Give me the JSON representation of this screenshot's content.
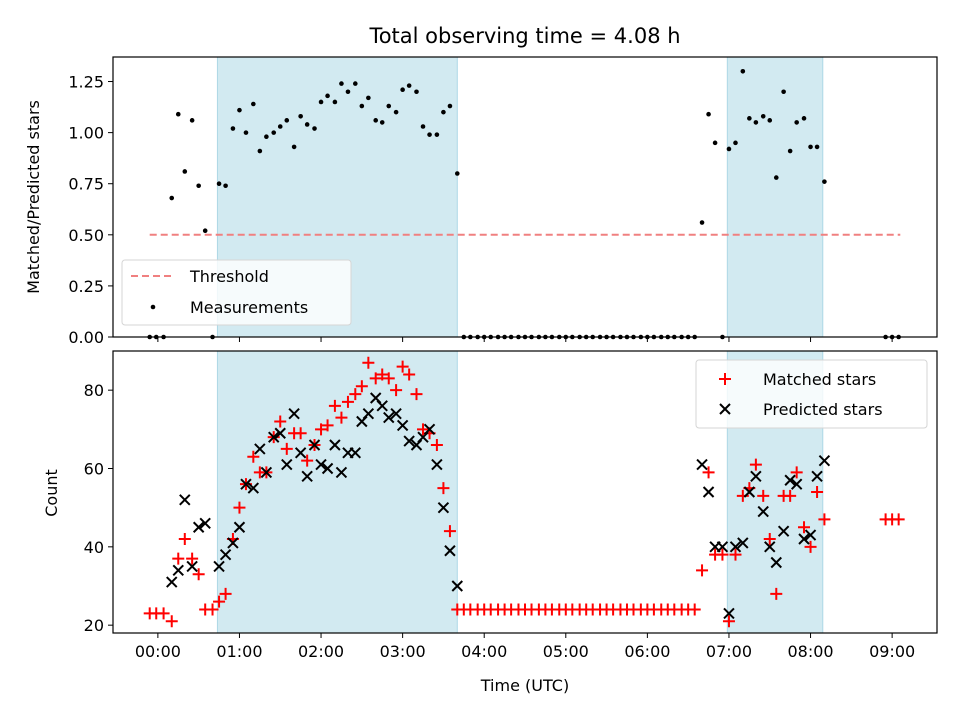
{
  "figure": {
    "title": "Total observing time = 4.08 h",
    "xlabel": "Time (UTC)"
  },
  "chart_data": [
    {
      "type": "scatter",
      "title": "Total observing time = 4.08 h",
      "xlabel": "Time (UTC)",
      "ylabel": "Matched/Predicted stars",
      "xlim": [
        -0.55,
        9.55
      ],
      "ylim": [
        0,
        1.37
      ],
      "xticks": [
        0,
        1,
        2,
        3,
        4,
        5,
        6,
        7,
        8,
        9
      ],
      "xtick_labels": [
        "00:00",
        "01:00",
        "02:00",
        "03:00",
        "04:00",
        "05:00",
        "06:00",
        "07:00",
        "08:00",
        "09:00"
      ],
      "yticks": [
        0,
        0.25,
        0.5,
        0.75,
        1.0,
        1.25
      ],
      "ytick_labels": [
        "0.00",
        "0.25",
        "0.50",
        "0.75",
        "1.00",
        "1.25"
      ],
      "shaded_intervals": [
        [
          0.73,
          3.67
        ],
        [
          6.98,
          8.15
        ]
      ],
      "shade_color": "#add8e6",
      "threshold": {
        "name": "Threshold",
        "y": 0.5,
        "x_start": -0.1,
        "x_end": 9.1,
        "color": "#f08080"
      },
      "legend": {
        "position": "lower-left",
        "entries": [
          "Threshold",
          "Measurements"
        ]
      },
      "series": [
        {
          "name": "Measurements",
          "marker": "dot",
          "color": "#000000",
          "x": [
            -0.1,
            -0.02,
            0.07,
            0.17,
            0.25,
            0.33,
            0.42,
            0.5,
            0.58,
            0.67,
            0.75,
            0.83,
            0.92,
            1.0,
            1.08,
            1.17,
            1.25,
            1.33,
            1.42,
            1.5,
            1.58,
            1.67,
            1.75,
            1.83,
            1.92,
            2.0,
            2.08,
            2.17,
            2.25,
            2.33,
            2.42,
            2.5,
            2.58,
            2.67,
            2.75,
            2.83,
            2.92,
            3.0,
            3.08,
            3.17,
            3.25,
            3.33,
            3.42,
            3.5,
            3.58,
            3.67,
            3.75,
            3.83,
            3.92,
            4.0,
            4.08,
            4.17,
            4.25,
            4.33,
            4.42,
            4.5,
            4.58,
            4.67,
            4.75,
            4.83,
            4.92,
            5.0,
            5.08,
            5.17,
            5.25,
            5.33,
            5.42,
            5.5,
            5.58,
            5.67,
            5.75,
            5.83,
            5.92,
            6.0,
            6.08,
            6.17,
            6.25,
            6.33,
            6.42,
            6.5,
            6.58,
            6.67,
            6.75,
            6.83,
            6.92,
            7.0,
            7.08,
            7.17,
            7.25,
            7.33,
            7.42,
            7.5,
            7.58,
            7.67,
            7.75,
            7.83,
            7.92,
            8.0,
            8.08,
            8.17,
            8.92,
            9.0,
            9.08
          ],
          "y": [
            0,
            0,
            0,
            0.68,
            1.09,
            0.81,
            1.06,
            0.74,
            0.52,
            0,
            0.75,
            0.74,
            1.02,
            1.11,
            1.0,
            1.14,
            0.91,
            0.98,
            1.0,
            1.03,
            1.06,
            0.93,
            1.08,
            1.04,
            1.02,
            1.15,
            1.18,
            1.15,
            1.24,
            1.2,
            1.24,
            1.13,
            1.17,
            1.06,
            1.05,
            1.13,
            1.1,
            1.21,
            1.23,
            1.2,
            1.03,
            0.99,
            0.99,
            1.1,
            1.13,
            0.8,
            0,
            0,
            0,
            0,
            0,
            0,
            0,
            0,
            0,
            0,
            0,
            0,
            0,
            0,
            0,
            0,
            0,
            0,
            0,
            0,
            0,
            0,
            0,
            0,
            0,
            0,
            0,
            0,
            0,
            0,
            0,
            0,
            0,
            0,
            0,
            0.56,
            1.09,
            0.95,
            0,
            0.92,
            0.95,
            1.3,
            1.07,
            1.05,
            1.08,
            1.06,
            0.78,
            1.2,
            0.91,
            1.05,
            1.07,
            0.93,
            0.93,
            0.76,
            0,
            0,
            0
          ]
        }
      ]
    },
    {
      "type": "scatter",
      "xlabel": "Time (UTC)",
      "ylabel": "Count",
      "xlim": [
        -0.55,
        9.55
      ],
      "ylim": [
        18,
        90
      ],
      "xticks": [
        0,
        1,
        2,
        3,
        4,
        5,
        6,
        7,
        8,
        9
      ],
      "xtick_labels": [
        "00:00",
        "01:00",
        "02:00",
        "03:00",
        "04:00",
        "05:00",
        "06:00",
        "07:00",
        "08:00",
        "09:00"
      ],
      "yticks": [
        20,
        40,
        60,
        80
      ],
      "ytick_labels": [
        "20",
        "40",
        "60",
        "80"
      ],
      "shaded_intervals": [
        [
          0.73,
          3.67
        ],
        [
          6.98,
          8.15
        ]
      ],
      "shade_color": "#add8e6",
      "legend": {
        "position": "top-right",
        "entries": [
          "Matched stars",
          "Predicted stars"
        ]
      },
      "series": [
        {
          "name": "Matched stars",
          "marker": "plus",
          "color": "#ff0000",
          "x": [
            -0.1,
            -0.02,
            0.07,
            0.17,
            0.25,
            0.33,
            0.42,
            0.5,
            0.58,
            0.67,
            0.75,
            0.83,
            0.92,
            1.0,
            1.08,
            1.17,
            1.25,
            1.33,
            1.42,
            1.5,
            1.58,
            1.67,
            1.75,
            1.83,
            1.92,
            2.0,
            2.08,
            2.17,
            2.25,
            2.33,
            2.42,
            2.5,
            2.58,
            2.67,
            2.75,
            2.83,
            2.92,
            3.0,
            3.08,
            3.17,
            3.25,
            3.33,
            3.42,
            3.5,
            3.58,
            3.67,
            3.75,
            3.83,
            3.92,
            4.0,
            4.08,
            4.17,
            4.25,
            4.33,
            4.42,
            4.5,
            4.58,
            4.67,
            4.75,
            4.83,
            4.92,
            5.0,
            5.08,
            5.17,
            5.25,
            5.33,
            5.42,
            5.5,
            5.58,
            5.67,
            5.75,
            5.83,
            5.92,
            6.0,
            6.08,
            6.17,
            6.25,
            6.33,
            6.42,
            6.5,
            6.58,
            6.67,
            6.75,
            6.83,
            6.92,
            7.0,
            7.08,
            7.17,
            7.25,
            7.33,
            7.42,
            7.5,
            7.58,
            7.67,
            7.75,
            7.83,
            7.92,
            8.0,
            8.08,
            8.17,
            8.92,
            9.0,
            9.08
          ],
          "y": [
            23,
            23,
            23,
            21,
            37,
            42,
            37,
            33,
            24,
            24,
            26,
            28,
            42,
            50,
            56,
            63,
            59,
            59,
            68,
            72,
            65,
            69,
            69,
            62,
            66,
            70,
            71,
            76,
            73,
            77,
            79,
            81,
            87,
            83,
            84,
            83,
            80,
            86,
            84,
            79,
            70,
            69,
            66,
            55,
            44,
            24,
            24,
            24,
            24,
            24,
            24,
            24,
            24,
            24,
            24,
            24,
            24,
            24,
            24,
            24,
            24,
            24,
            24,
            24,
            24,
            24,
            24,
            24,
            24,
            24,
            24,
            24,
            24,
            24,
            24,
            24,
            24,
            24,
            24,
            24,
            24,
            34,
            59,
            38,
            38,
            21,
            38,
            53,
            55,
            61,
            53,
            42,
            28,
            53,
            53,
            59,
            45,
            40,
            54,
            47,
            47,
            47,
            47
          ]
        },
        {
          "name": "Predicted stars",
          "marker": "x",
          "color": "#000000",
          "x": [
            0.17,
            0.25,
            0.33,
            0.42,
            0.5,
            0.58,
            0.75,
            0.83,
            0.92,
            1.0,
            1.08,
            1.17,
            1.25,
            1.33,
            1.42,
            1.5,
            1.58,
            1.67,
            1.75,
            1.83,
            1.92,
            2.0,
            2.08,
            2.17,
            2.25,
            2.33,
            2.42,
            2.5,
            2.58,
            2.67,
            2.75,
            2.83,
            2.92,
            3.0,
            3.08,
            3.17,
            3.25,
            3.33,
            3.42,
            3.5,
            3.58,
            3.67,
            6.67,
            6.75,
            6.83,
            6.92,
            7.0,
            7.08,
            7.17,
            7.25,
            7.33,
            7.42,
            7.5,
            7.58,
            7.67,
            7.75,
            7.83,
            7.92,
            8.0,
            8.08,
            8.17
          ],
          "y": [
            31,
            34,
            52,
            35,
            45,
            46,
            35,
            38,
            41,
            45,
            56,
            55,
            65,
            59,
            68,
            69,
            61,
            74,
            64,
            58,
            66,
            61,
            60,
            66,
            59,
            64,
            64,
            72,
            74,
            78,
            76,
            73,
            74,
            71,
            67,
            66,
            68,
            70,
            61,
            50,
            39,
            30,
            61,
            54,
            40,
            40,
            23,
            40,
            41,
            54,
            58,
            49,
            40,
            36,
            44,
            57,
            56,
            42,
            43,
            58,
            62
          ]
        }
      ]
    }
  ]
}
